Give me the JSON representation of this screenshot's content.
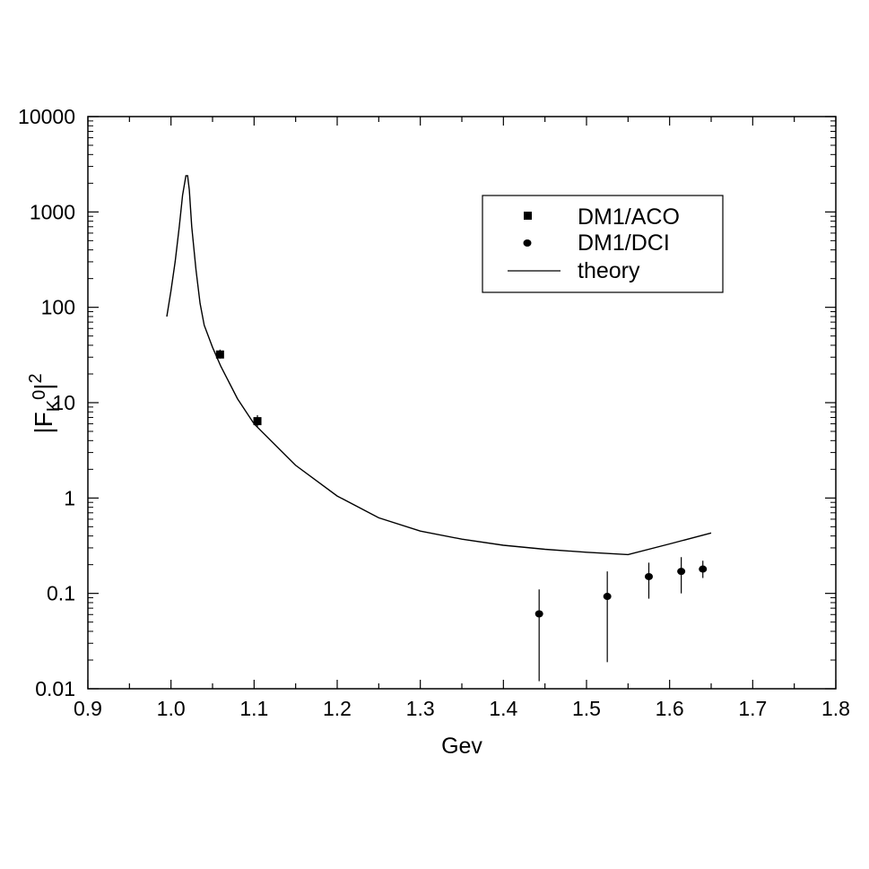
{
  "chart_data": {
    "type": "scatter",
    "xlabel": "Gev",
    "ylabel": {
      "base": "|F",
      "sub_left": "K",
      "sup_mid": "0",
      "close": "|",
      "sup": "2"
    },
    "x_scale": "linear",
    "y_scale": "log",
    "xlim": [
      0.9,
      1.8
    ],
    "ylim": [
      0.01,
      10000
    ],
    "x_ticks": [
      "0.9",
      "1.0",
      "1.1",
      "1.2",
      "1.3",
      "1.4",
      "1.5",
      "1.6",
      "1.7",
      "1.8"
    ],
    "y_ticks": [
      "0.01",
      "0.1",
      "1",
      "10",
      "100",
      "1000",
      "10000"
    ],
    "legend_position": "top-right",
    "grid": false,
    "series": [
      {
        "name": "DM1/ACO",
        "marker": "square",
        "points": [
          {
            "x": 1.059,
            "y": 32.0,
            "y_low": 29.0,
            "y_high": 36.0
          },
          {
            "x": 1.104,
            "y": 6.4,
            "y_low": 5.6,
            "y_high": 7.4
          }
        ]
      },
      {
        "name": "DM1/DCI",
        "marker": "circle",
        "points": [
          {
            "x": 1.443,
            "y": 0.061,
            "y_low": 0.012,
            "y_high": 0.11
          },
          {
            "x": 1.525,
            "y": 0.093,
            "y_low": 0.019,
            "y_high": 0.17
          },
          {
            "x": 1.575,
            "y": 0.15,
            "y_low": 0.088,
            "y_high": 0.21
          },
          {
            "x": 1.614,
            "y": 0.17,
            "y_low": 0.1,
            "y_high": 0.24
          },
          {
            "x": 1.64,
            "y": 0.18,
            "y_low": 0.145,
            "y_high": 0.22
          }
        ]
      },
      {
        "name": "theory",
        "marker": "line",
        "x": [
          0.995,
          1.0,
          1.005,
          1.01,
          1.014,
          1.018,
          1.02,
          1.022,
          1.025,
          1.03,
          1.035,
          1.04,
          1.05,
          1.06,
          1.08,
          1.1,
          1.15,
          1.2,
          1.25,
          1.3,
          1.35,
          1.4,
          1.45,
          1.5,
          1.55,
          1.6,
          1.65
        ],
        "y": [
          80,
          150,
          300,
          700,
          1500,
          2400,
          2400,
          1700,
          700,
          250,
          110,
          65,
          38,
          24,
          11,
          6.0,
          2.2,
          1.05,
          0.62,
          0.45,
          0.37,
          0.32,
          0.29,
          0.27,
          0.255,
          0.33,
          0.43
        ]
      }
    ]
  }
}
